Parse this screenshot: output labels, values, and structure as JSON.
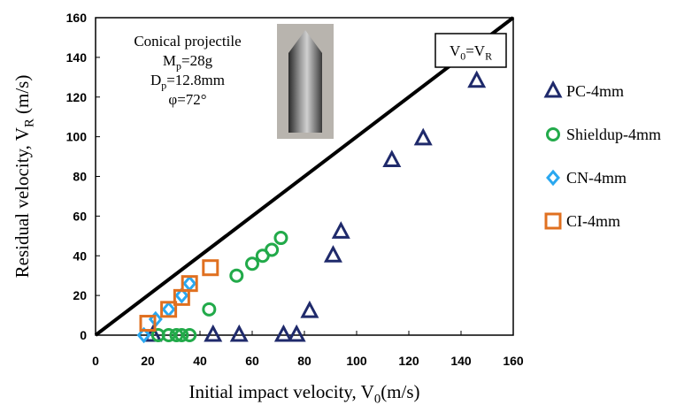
{
  "chart_data": {
    "type": "scatter",
    "x_label": [
      {
        "text": "Initial impact velocity, V"
      },
      {
        "sub": "0"
      },
      {
        "text": "(m/s)"
      }
    ],
    "y_label": [
      {
        "text": "Residual velocity,  V"
      },
      {
        "sub": "R"
      },
      {
        "text": " (m/s)"
      }
    ],
    "xlim": [
      0,
      160
    ],
    "ylim": [
      0,
      160
    ],
    "xticks": [
      0,
      20,
      40,
      60,
      80,
      100,
      120,
      140,
      160
    ],
    "yticks": [
      0,
      20,
      40,
      60,
      80,
      100,
      120,
      140,
      160
    ],
    "annotations": [
      [
        {
          "text": "Conical projectile"
        }
      ],
      [
        {
          "text": "M"
        },
        {
          "sub": "p"
        },
        {
          "text": "=28g"
        }
      ],
      [
        {
          "text": "D"
        },
        {
          "sub": "p"
        },
        {
          "text": "=12.8mm"
        }
      ],
      [
        {
          "text": "φ=72°"
        }
      ]
    ],
    "reference_line": {
      "label": [
        {
          "text": "V"
        },
        {
          "sub": "0"
        },
        {
          "text": "=V"
        },
        {
          "sub": "R"
        }
      ],
      "x": [
        0,
        160
      ],
      "y": [
        0,
        160
      ],
      "color": "#000000"
    },
    "series": [
      {
        "name": "PC-4mm",
        "marker": "triangle",
        "color": "#1f2a6b",
        "x": [
          22,
          45,
          55,
          72,
          77,
          82,
          91,
          94,
          113.5,
          125.5,
          146
        ],
        "values": [
          0,
          0,
          0,
          0,
          0,
          12,
          40,
          52,
          88,
          99,
          128
        ]
      },
      {
        "name": "Shieldup-4mm",
        "marker": "circle",
        "color": "#22aa4a",
        "x": [
          24,
          28,
          31,
          33,
          36,
          43.5,
          54,
          60,
          64,
          67.5,
          71
        ],
        "values": [
          0,
          0,
          0,
          0,
          0,
          13,
          30,
          36,
          40,
          43,
          49
        ]
      },
      {
        "name": "CN-4mm",
        "marker": "diamond",
        "color": "#2aa8f0",
        "x": [
          18.5,
          23,
          28,
          33,
          36
        ],
        "values": [
          0,
          8,
          13,
          20,
          26
        ]
      },
      {
        "name": "CI-4mm",
        "marker": "square",
        "color": "#e07020",
        "x": [
          20,
          28,
          33,
          36,
          44
        ],
        "values": [
          6,
          13,
          19,
          26,
          34
        ]
      }
    ]
  }
}
